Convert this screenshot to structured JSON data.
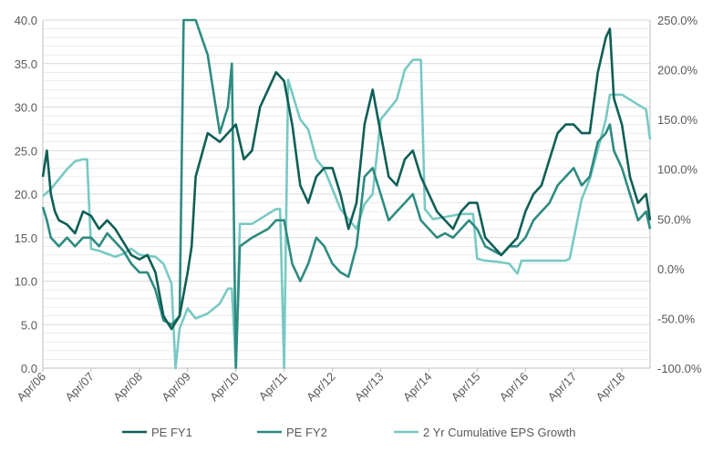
{
  "chart_data": {
    "type": "line",
    "title": "",
    "xlabel": "",
    "ylabel": "",
    "y_left": {
      "min": 0,
      "max": 40,
      "ticks": [
        "0.0",
        "5.0",
        "10.0",
        "15.0",
        "20.0",
        "25.0",
        "30.0",
        "35.0",
        "40.0"
      ]
    },
    "y_right": {
      "min": -100,
      "max": 250,
      "ticks": [
        "-100.0%",
        "-50.0%",
        "0.0%",
        "50.0%",
        "100.0%",
        "150.0%",
        "200.0%",
        "250.0%"
      ]
    },
    "x_range": [
      "2006-04",
      "2018-11"
    ],
    "x_ticks": [
      "Apr/06",
      "Apr/07",
      "Apr/08",
      "Apr/09",
      "Apr/10",
      "Apr/11",
      "Apr/12",
      "Apr/13",
      "Apr/14",
      "Apr/15",
      "Apr/16",
      "Apr/17",
      "Apr/18"
    ],
    "grid": "horizontal minor gridlines",
    "legend_position": "bottom",
    "colors": {
      "pe_fy1": "#0f5f56",
      "pe_fy2": "#2e8b80",
      "eps_growth": "#78c9c2",
      "grid": "#d9d9d9",
      "axis": "#bfbfbf"
    },
    "series": [
      {
        "name": "PE FY1",
        "axis": "left",
        "points": [
          [
            "2006-04",
            22
          ],
          [
            "2006-05",
            25
          ],
          [
            "2006-06",
            20
          ],
          [
            "2006-07",
            18
          ],
          [
            "2006-08",
            17
          ],
          [
            "2006-10",
            16.5
          ],
          [
            "2006-12",
            15.5
          ],
          [
            "2007-02",
            18
          ],
          [
            "2007-04",
            17.5
          ],
          [
            "2007-06",
            16
          ],
          [
            "2007-08",
            17
          ],
          [
            "2007-10",
            16
          ],
          [
            "2007-12",
            14.5
          ],
          [
            "2008-02",
            13
          ],
          [
            "2008-04",
            12.5
          ],
          [
            "2008-06",
            13
          ],
          [
            "2008-08",
            11
          ],
          [
            "2008-10",
            6
          ],
          [
            "2008-12",
            4.5
          ],
          [
            "2009-02",
            6
          ],
          [
            "2009-04",
            11
          ],
          [
            "2009-05",
            14
          ],
          [
            "2009-06",
            22
          ],
          [
            "2009-09",
            27
          ],
          [
            "2009-12",
            26
          ],
          [
            "2010-02",
            27
          ],
          [
            "2010-04",
            28
          ],
          [
            "2010-06",
            24
          ],
          [
            "2010-08",
            25
          ],
          [
            "2010-10",
            30
          ],
          [
            "2010-12",
            32
          ],
          [
            "2011-02",
            34
          ],
          [
            "2011-04",
            33
          ],
          [
            "2011-06",
            28
          ],
          [
            "2011-08",
            21
          ],
          [
            "2011-10",
            19
          ],
          [
            "2011-12",
            22
          ],
          [
            "2012-02",
            23
          ],
          [
            "2012-04",
            23
          ],
          [
            "2012-06",
            20
          ],
          [
            "2012-08",
            16
          ],
          [
            "2012-10",
            19
          ],
          [
            "2012-12",
            28
          ],
          [
            "2013-02",
            32
          ],
          [
            "2013-04",
            27
          ],
          [
            "2013-06",
            22
          ],
          [
            "2013-08",
            21
          ],
          [
            "2013-10",
            24
          ],
          [
            "2013-12",
            25
          ],
          [
            "2014-02",
            22
          ],
          [
            "2014-04",
            20
          ],
          [
            "2014-06",
            18
          ],
          [
            "2014-08",
            17
          ],
          [
            "2014-10",
            16
          ],
          [
            "2014-12",
            18
          ],
          [
            "2015-02",
            19
          ],
          [
            "2015-04",
            19
          ],
          [
            "2015-06",
            15
          ],
          [
            "2015-08",
            14
          ],
          [
            "2015-10",
            13
          ],
          [
            "2015-12",
            14
          ],
          [
            "2016-02",
            15
          ],
          [
            "2016-04",
            18
          ],
          [
            "2016-06",
            20
          ],
          [
            "2016-08",
            21
          ],
          [
            "2016-10",
            24
          ],
          [
            "2016-12",
            27
          ],
          [
            "2017-02",
            28
          ],
          [
            "2017-04",
            28
          ],
          [
            "2017-06",
            27
          ],
          [
            "2017-08",
            27
          ],
          [
            "2017-10",
            34
          ],
          [
            "2017-12",
            38
          ],
          [
            "2018-01",
            39
          ],
          [
            "2018-02",
            31
          ],
          [
            "2018-04",
            28
          ],
          [
            "2018-06",
            22
          ],
          [
            "2018-08",
            19
          ],
          [
            "2018-10",
            20
          ],
          [
            "2018-11",
            17
          ]
        ]
      },
      {
        "name": "PE FY2",
        "axis": "left",
        "points": [
          [
            "2006-04",
            18.5
          ],
          [
            "2006-05",
            17
          ],
          [
            "2006-06",
            15
          ],
          [
            "2006-08",
            14
          ],
          [
            "2006-10",
            15
          ],
          [
            "2006-12",
            14
          ],
          [
            "2007-02",
            15
          ],
          [
            "2007-04",
            15
          ],
          [
            "2007-06",
            14
          ],
          [
            "2007-08",
            15.5
          ],
          [
            "2007-10",
            14.5
          ],
          [
            "2007-12",
            13.5
          ],
          [
            "2008-02",
            12
          ],
          [
            "2008-04",
            11
          ],
          [
            "2008-06",
            11
          ],
          [
            "2008-08",
            9
          ],
          [
            "2008-10",
            5.5
          ],
          [
            "2008-12",
            5
          ],
          [
            "2009-02",
            6
          ],
          [
            "2009-03",
            40
          ],
          [
            "2009-06",
            40
          ],
          [
            "2009-09",
            36
          ],
          [
            "2009-12",
            27
          ],
          [
            "2010-02",
            30
          ],
          [
            "2010-03",
            35
          ],
          [
            "2010-04",
            0
          ],
          [
            "2010-05",
            14
          ],
          [
            "2010-08",
            15
          ],
          [
            "2010-12",
            16
          ],
          [
            "2011-02",
            17
          ],
          [
            "2011-04",
            17
          ],
          [
            "2011-06",
            12
          ],
          [
            "2011-08",
            10
          ],
          [
            "2011-10",
            12
          ],
          [
            "2011-12",
            15
          ],
          [
            "2012-02",
            14
          ],
          [
            "2012-04",
            12
          ],
          [
            "2012-06",
            11
          ],
          [
            "2012-08",
            10.5
          ],
          [
            "2012-10",
            14
          ],
          [
            "2012-12",
            22
          ],
          [
            "2013-02",
            23
          ],
          [
            "2013-04",
            20
          ],
          [
            "2013-06",
            17
          ],
          [
            "2013-08",
            18
          ],
          [
            "2013-10",
            19
          ],
          [
            "2013-12",
            20
          ],
          [
            "2014-02",
            17
          ],
          [
            "2014-04",
            16
          ],
          [
            "2014-06",
            15
          ],
          [
            "2014-08",
            15.5
          ],
          [
            "2014-10",
            15
          ],
          [
            "2014-12",
            16
          ],
          [
            "2015-02",
            17
          ],
          [
            "2015-04",
            16
          ],
          [
            "2015-06",
            14
          ],
          [
            "2015-08",
            13.5
          ],
          [
            "2015-10",
            13
          ],
          [
            "2015-12",
            14
          ],
          [
            "2016-02",
            14
          ],
          [
            "2016-04",
            15
          ],
          [
            "2016-06",
            17
          ],
          [
            "2016-08",
            18
          ],
          [
            "2016-10",
            19
          ],
          [
            "2016-12",
            21
          ],
          [
            "2017-02",
            22
          ],
          [
            "2017-04",
            23
          ],
          [
            "2017-06",
            21
          ],
          [
            "2017-08",
            22
          ],
          [
            "2017-10",
            26
          ],
          [
            "2017-12",
            27
          ],
          [
            "2018-01",
            28
          ],
          [
            "2018-02",
            25
          ],
          [
            "2018-04",
            23
          ],
          [
            "2018-06",
            20
          ],
          [
            "2018-08",
            17
          ],
          [
            "2018-10",
            18
          ],
          [
            "2018-11",
            16
          ]
        ]
      },
      {
        "name": "2 Yr Cumulative EPS Growth",
        "axis": "right",
        "points": [
          [
            "2006-04",
            73
          ],
          [
            "2006-06",
            80
          ],
          [
            "2006-08",
            90
          ],
          [
            "2006-10",
            100
          ],
          [
            "2006-12",
            108
          ],
          [
            "2007-02",
            110
          ],
          [
            "2007-03",
            110
          ],
          [
            "2007-04",
            20
          ],
          [
            "2007-06",
            18
          ],
          [
            "2007-08",
            15
          ],
          [
            "2007-10",
            12
          ],
          [
            "2007-12",
            15
          ],
          [
            "2008-02",
            20
          ],
          [
            "2008-04",
            14
          ],
          [
            "2008-06",
            13
          ],
          [
            "2008-08",
            12
          ],
          [
            "2008-10",
            5
          ],
          [
            "2008-12",
            -15
          ],
          [
            "2009-01",
            -100
          ],
          [
            "2009-02",
            -60
          ],
          [
            "2009-04",
            -40
          ],
          [
            "2009-06",
            -50
          ],
          [
            "2009-09",
            -45
          ],
          [
            "2009-12",
            -35
          ],
          [
            "2010-02",
            -20
          ],
          [
            "2010-03",
            -20
          ],
          [
            "2010-04",
            -100
          ],
          [
            "2010-05",
            45
          ],
          [
            "2010-08",
            45
          ],
          [
            "2010-12",
            55
          ],
          [
            "2011-02",
            60
          ],
          [
            "2011-03",
            60
          ],
          [
            "2011-04",
            -100
          ],
          [
            "2011-05",
            190
          ],
          [
            "2011-08",
            150
          ],
          [
            "2011-10",
            140
          ],
          [
            "2011-12",
            110
          ],
          [
            "2012-02",
            100
          ],
          [
            "2012-04",
            80
          ],
          [
            "2012-06",
            60
          ],
          [
            "2012-08",
            50
          ],
          [
            "2012-10",
            40
          ],
          [
            "2012-12",
            65
          ],
          [
            "2013-02",
            75
          ],
          [
            "2013-04",
            150
          ],
          [
            "2013-06",
            160
          ],
          [
            "2013-08",
            170
          ],
          [
            "2013-10",
            200
          ],
          [
            "2013-12",
            210
          ],
          [
            "2014-02",
            210
          ],
          [
            "2014-03",
            60
          ],
          [
            "2014-05",
            50
          ],
          [
            "2014-08",
            52
          ],
          [
            "2014-12",
            55
          ],
          [
            "2015-03",
            55
          ],
          [
            "2015-04",
            10
          ],
          [
            "2015-06",
            8
          ],
          [
            "2015-09",
            7
          ],
          [
            "2015-12",
            5
          ],
          [
            "2016-02",
            -5
          ],
          [
            "2016-03",
            8
          ],
          [
            "2016-06",
            8
          ],
          [
            "2016-10",
            8
          ],
          [
            "2016-12",
            8
          ],
          [
            "2017-02",
            8
          ],
          [
            "2017-03",
            10
          ],
          [
            "2017-04",
            30
          ],
          [
            "2017-06",
            70
          ],
          [
            "2017-08",
            90
          ],
          [
            "2017-10",
            120
          ],
          [
            "2017-12",
            150
          ],
          [
            "2018-01",
            175
          ],
          [
            "2018-04",
            175
          ],
          [
            "2018-06",
            170
          ],
          [
            "2018-08",
            165
          ],
          [
            "2018-10",
            160
          ],
          [
            "2018-11",
            130
          ]
        ]
      }
    ]
  }
}
